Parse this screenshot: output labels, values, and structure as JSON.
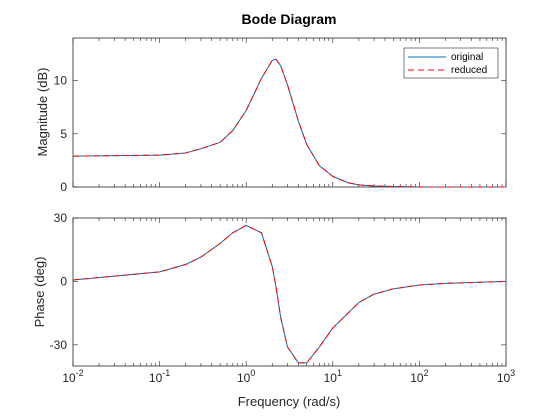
{
  "chart_data": {
    "type": "line",
    "title": "Bode Diagram",
    "xlabel": "Frequency (rad/s)",
    "xscale": "log",
    "xlim": [
      0.01,
      1000
    ],
    "x_ticks": [
      {
        "base": "10",
        "exp": "-2"
      },
      {
        "base": "10",
        "exp": "-1"
      },
      {
        "base": "10",
        "exp": "0"
      },
      {
        "base": "10",
        "exp": "1"
      },
      {
        "base": "10",
        "exp": "2"
      },
      {
        "base": "10",
        "exp": "3"
      }
    ],
    "legend": {
      "placement": "top-right",
      "entries": [
        {
          "name": "original",
          "color": "#0072BD",
          "style": "solid"
        },
        {
          "name": "reduced",
          "color": "#FF0000",
          "style": "dashed"
        }
      ]
    },
    "x": [
      0.01,
      0.1,
      0.2,
      0.3,
      0.5,
      0.7,
      1.0,
      1.5,
      2.0,
      2.2,
      2.5,
      3.0,
      4.0,
      5.0,
      7.0,
      10,
      15,
      20,
      30,
      50,
      100,
      200,
      1000
    ],
    "magnitude": {
      "ylabel": "Magnitude (dB)",
      "ylim": [
        0,
        14
      ],
      "yticks": [
        0,
        5,
        10
      ],
      "series": [
        {
          "name": "original",
          "values": [
            2.9,
            3.0,
            3.2,
            3.6,
            4.2,
            5.3,
            7.2,
            10.2,
            11.9,
            12.0,
            11.4,
            9.6,
            6.2,
            4.0,
            2.0,
            1.0,
            0.4,
            0.2,
            0.1,
            0.05,
            0.0,
            0.0,
            0.0
          ]
        },
        {
          "name": "reduced",
          "values": [
            2.9,
            3.0,
            3.2,
            3.6,
            4.2,
            5.3,
            7.2,
            10.2,
            11.9,
            12.0,
            11.4,
            9.6,
            6.2,
            4.0,
            2.0,
            1.0,
            0.4,
            0.2,
            0.1,
            0.05,
            0.0,
            0.0,
            0.0
          ]
        }
      ]
    },
    "phase": {
      "ylabel": "Phase (deg)",
      "ylim": [
        -40,
        30
      ],
      "yticks": [
        -30,
        0,
        30
      ],
      "series": [
        {
          "name": "original",
          "values": [
            0.7,
            4.5,
            8.0,
            11.5,
            18.0,
            23.0,
            26.5,
            23.0,
            7.0,
            -2.0,
            -17.0,
            -31.0,
            -38.5,
            -38.5,
            -31.0,
            -22.0,
            -15.0,
            -10.0,
            -6.0,
            -3.5,
            -1.7,
            -0.9,
            0.0
          ]
        },
        {
          "name": "reduced",
          "values": [
            0.7,
            4.5,
            8.0,
            11.5,
            18.0,
            23.0,
            26.5,
            23.0,
            7.0,
            -2.0,
            -17.0,
            -31.0,
            -38.5,
            -38.5,
            -31.0,
            -22.0,
            -15.0,
            -10.0,
            -6.0,
            -3.5,
            -1.7,
            -0.9,
            0.0
          ]
        }
      ]
    }
  }
}
